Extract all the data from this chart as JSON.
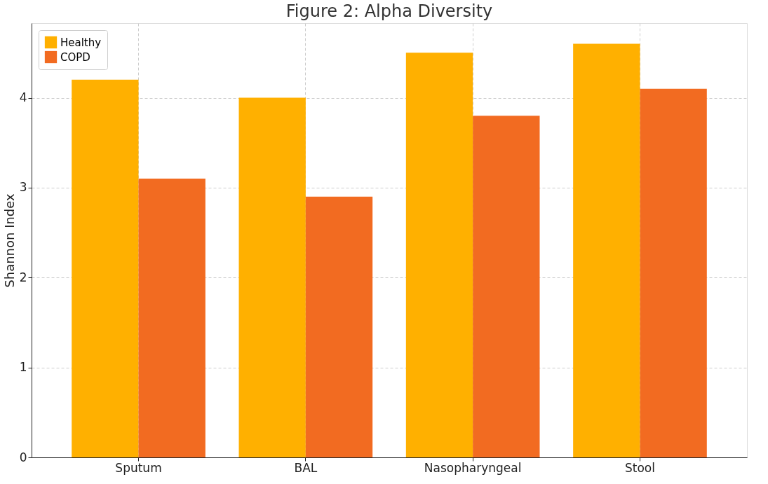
{
  "chart_data": {
    "type": "bar",
    "title": "Figure 2: Alpha Diversity",
    "ylabel": "Shannon Index",
    "categories": [
      "Sputum",
      "BAL",
      "Nasopharyngeal",
      "Stool"
    ],
    "series": [
      {
        "name": "Healthy",
        "color": "#ffb000",
        "values": [
          4.2,
          4.0,
          4.5,
          4.6
        ]
      },
      {
        "name": "COPD",
        "color": "#f26b21",
        "values": [
          3.1,
          2.9,
          3.8,
          4.1
        ]
      }
    ],
    "ylim": [
      0,
      4.83
    ],
    "yticks": [
      0,
      1,
      2,
      3,
      4
    ],
    "grid": true,
    "legend": "top left"
  }
}
